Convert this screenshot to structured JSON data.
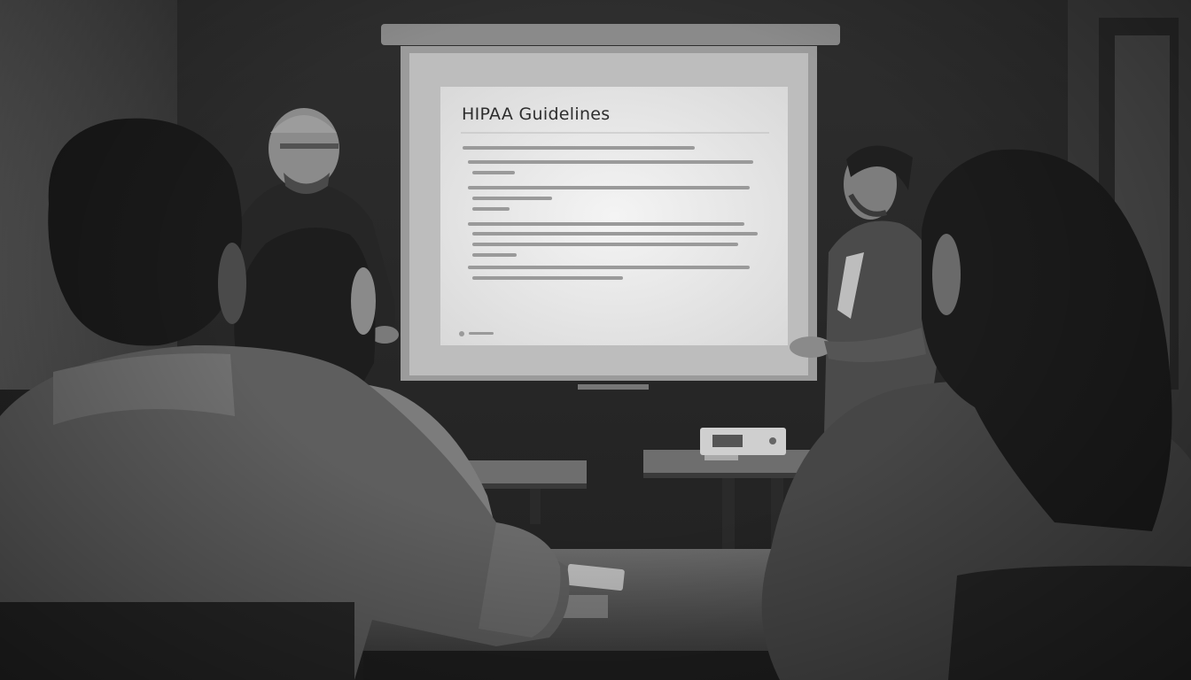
{
  "slide": {
    "title": "HIPAA Guidelines"
  },
  "colors": {
    "wall": "#2b2b2b",
    "screen": "#e9e9e9",
    "table": "#5a5a5a"
  }
}
